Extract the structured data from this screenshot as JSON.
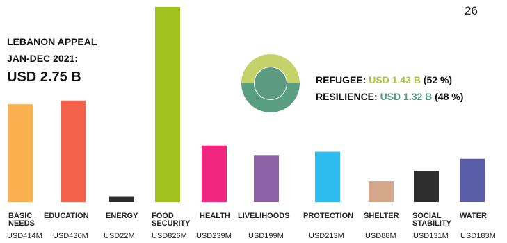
{
  "page_number": "26",
  "appeal": {
    "line1": "LEBANON APPEAL",
    "line2": "JAN-DEC 2021:",
    "total": "USD 2.75 B"
  },
  "split": {
    "refugee_label": "REFUGEE:",
    "refugee_amount": "USD 1.43 B",
    "refugee_pct": "(52 %)",
    "resilience_label": "RESILIENCE:",
    "resilience_amount": "USD 1.32 B",
    "resilience_pct": "(48 %)",
    "colors": {
      "refugee": "#c3d36a",
      "resilience": "#5a9e81"
    }
  },
  "chart_data": {
    "type": "bar",
    "categories": [
      [
        "BASIC",
        "NEEDS"
      ],
      [
        "EDUCATION"
      ],
      [
        "ENERGY"
      ],
      [
        "FOOD",
        "SECURITY"
      ],
      [
        "HEALTH"
      ],
      [
        "LIVELIHOODS"
      ],
      [
        "PROTECTION"
      ],
      [
        "SHELTER"
      ],
      [
        "SOCIAL",
        "STABILITY"
      ],
      [
        "WATER"
      ]
    ],
    "values": [
      414,
      430,
      22,
      826,
      239,
      199,
      213,
      88,
      131,
      183
    ],
    "value_labels": [
      "USD414M",
      "USD430M",
      "USD22M",
      "USD826M",
      "USD239M",
      "USD199M",
      "USD213M",
      "USD88M",
      "USD131M",
      "USD183M"
    ],
    "colors": [
      "#fbb04f",
      "#f4614a",
      "#2e2e2e",
      "#a0c21f",
      "#f0267e",
      "#8f62a8",
      "#2dbcec",
      "#d4a78a",
      "#2e2e2e",
      "#5a5da7"
    ],
    "unit": "USD M"
  }
}
